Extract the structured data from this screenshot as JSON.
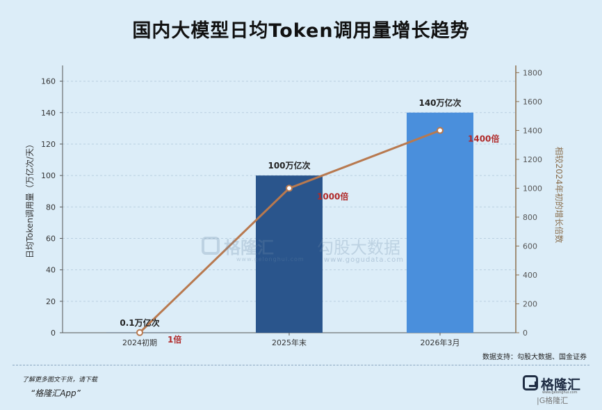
{
  "title": "国内大模型日均Token调用量增长趋势",
  "chart_data": {
    "type": "bar",
    "categories": [
      "2024初期",
      "2025年末",
      "2026年3月"
    ],
    "series": [
      {
        "type": "bar",
        "values": [
          0.1,
          100,
          140
        ],
        "labels": [
          "0.1万亿次",
          "100万亿次",
          "140万亿次"
        ],
        "colors": [
          "#2d4b74",
          "#2a558c",
          "#4a8fdc"
        ]
      },
      {
        "type": "line",
        "axis": "right",
        "values": [
          1,
          1000,
          1400
        ],
        "labels": [
          "1倍",
          "1000倍",
          "1400倍"
        ],
        "color": "#b8794f"
      }
    ],
    "ylabel": "日均Token调用量（万亿次/天）",
    "y2label": "相较2024年初的增长倍数",
    "ylim": [
      0,
      170
    ],
    "y2lim": [
      0,
      1850
    ],
    "yticks": [
      0,
      20,
      40,
      60,
      80,
      100,
      120,
      140,
      160
    ],
    "y2ticks": [
      0,
      200,
      400,
      600,
      800,
      1000,
      1200,
      1400,
      1600,
      1800
    ],
    "grid": true,
    "label_color": "#b02a2a"
  },
  "source": "数据支持：勾股大数据、国金证券",
  "promo_line1": "了解更多图文干货，请下载",
  "promo_line2": "“格隆汇App”",
  "brand": {
    "name": "格隆汇",
    "url": "www.gelonghui.com",
    "sub": "|G格隆汇"
  },
  "watermark": {
    "name": "格隆汇",
    "url": "www.gelonghui.com",
    "name2": "勾股大数据",
    "url2": "www.gogudata.com"
  }
}
